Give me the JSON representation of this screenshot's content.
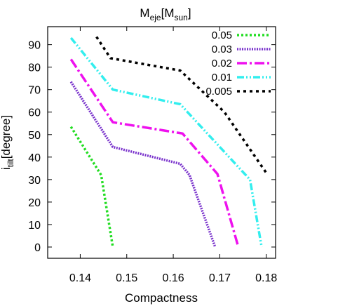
{
  "chart_data": {
    "type": "line",
    "title_main": "M",
    "title_sub1": "eje",
    "title_mid": "[M",
    "title_sub2": "sun",
    "title_end": "]",
    "xlabel": "Compactness",
    "ylabel_main": "i",
    "ylabel_sub": "tilt",
    "ylabel_end": "[degree]",
    "xlim": [
      0.133,
      0.182
    ],
    "ylim": [
      -5,
      98
    ],
    "xticks": [
      0.14,
      0.15,
      0.16,
      0.17,
      0.18
    ],
    "xtick_labels": [
      "0.14",
      "0.15",
      "0.16",
      "0.17",
      "0.18"
    ],
    "yticks": [
      0,
      10,
      20,
      30,
      40,
      50,
      60,
      70,
      80,
      90
    ],
    "ytick_labels": [
      "0",
      "10",
      "20",
      "30",
      "40",
      "50",
      "60",
      "70",
      "80",
      "90"
    ],
    "legend_placement": "top-right",
    "grid": false,
    "series": [
      {
        "name": "0.05",
        "color": "#22dd22",
        "dash": "3,3",
        "x": [
          0.138,
          0.1445,
          0.147
        ],
        "y": [
          53.5,
          32,
          0
        ]
      },
      {
        "name": "0.03",
        "color": "#7a33cc",
        "dash": "2,1.5",
        "x": [
          0.138,
          0.147,
          0.1615,
          0.1635,
          0.169
        ],
        "y": [
          73.5,
          44.5,
          37,
          32,
          0
        ]
      },
      {
        "name": "0.02",
        "color": "#ee11ee",
        "dash": "14,4,3,4",
        "x": [
          0.138,
          0.147,
          0.162,
          0.1695,
          0.174
        ],
        "y": [
          83.5,
          55.5,
          50.5,
          32.5,
          0
        ]
      },
      {
        "name": "0.01",
        "color": "#33eeee",
        "dash": "10,3,2,3,2,3",
        "x": [
          0.138,
          0.147,
          0.1615,
          0.1765,
          0.179
        ],
        "y": [
          93,
          70,
          63.5,
          30,
          0
        ]
      },
      {
        "name": "0.005",
        "color": "#000000",
        "dash": "4,5",
        "x": [
          0.1435,
          0.1465,
          0.1615,
          0.171,
          0.18
        ],
        "y": [
          93.5,
          84,
          78.5,
          60,
          33
        ]
      }
    ]
  }
}
